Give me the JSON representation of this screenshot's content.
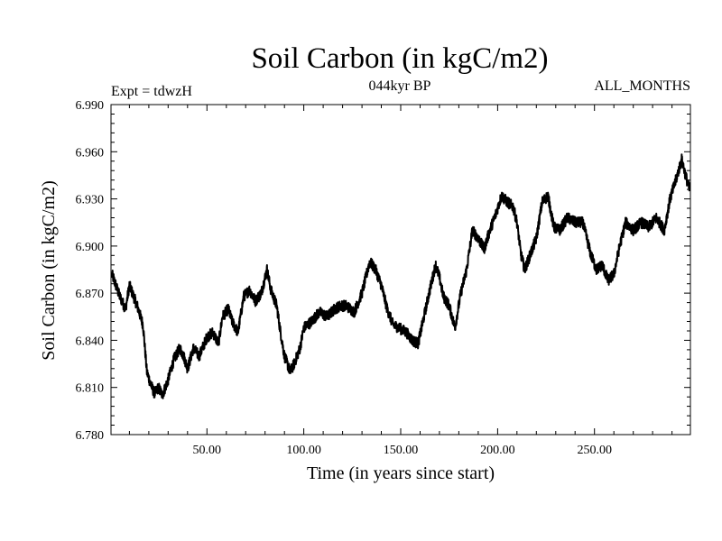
{
  "chart_data": {
    "type": "line",
    "title": "Soil Carbon (in kgC/m2)",
    "subtitle": "044kyr BP",
    "left_label": "Expt = tdwzH",
    "right_label": "ALL_MONTHS",
    "xlabel": "Time (in years since start)",
    "ylabel": "Soil Carbon (in kgC/m2)",
    "xlim": [
      0.5,
      299.5
    ],
    "ylim": [
      6.78,
      6.99
    ],
    "xticks": [
      50,
      100,
      150,
      200,
      250
    ],
    "xtick_labels": [
      "50.00",
      "100.00",
      "150.00",
      "200.00",
      "250.00"
    ],
    "yticks": [
      6.78,
      6.81,
      6.84,
      6.87,
      6.9,
      6.93,
      6.96,
      6.99
    ],
    "ytick_labels": [
      "6.780",
      "6.810",
      "6.840",
      "6.870",
      "6.900",
      "6.930",
      "6.960",
      "6.990"
    ],
    "line_color": "#000000",
    "series": [
      {
        "name": "Soil Carbon",
        "x": [
          1,
          5,
          8,
          10,
          14,
          17,
          19,
          21,
          23,
          25,
          27,
          30,
          33,
          36,
          38,
          40,
          43,
          46,
          50,
          53,
          56,
          58,
          61,
          63,
          66,
          69,
          72,
          75,
          78,
          81,
          83,
          86,
          88,
          90,
          93,
          95,
          98,
          100,
          104,
          108,
          112,
          116,
          119,
          122,
          126,
          130,
          134,
          137,
          140,
          143,
          146,
          149,
          153,
          156,
          159,
          162,
          165,
          168,
          170,
          172,
          175,
          178,
          181,
          184,
          187,
          190,
          193,
          196,
          199,
          202,
          205,
          208,
          210,
          212,
          214,
          217,
          220,
          223,
          226,
          229,
          232,
          236,
          240,
          244,
          248,
          251,
          254,
          257,
          260,
          263,
          266,
          270,
          274,
          278,
          282,
          286,
          289,
          292,
          295,
          297,
          299
        ],
        "y": [
          6.882,
          6.868,
          6.86,
          6.875,
          6.862,
          6.85,
          6.82,
          6.812,
          6.806,
          6.81,
          6.805,
          6.815,
          6.828,
          6.835,
          6.83,
          6.822,
          6.835,
          6.83,
          6.842,
          6.845,
          6.838,
          6.855,
          6.86,
          6.852,
          6.845,
          6.868,
          6.872,
          6.865,
          6.87,
          6.885,
          6.872,
          6.862,
          6.845,
          6.83,
          6.82,
          6.825,
          6.835,
          6.848,
          6.852,
          6.858,
          6.855,
          6.86,
          6.862,
          6.862,
          6.858,
          6.87,
          6.89,
          6.885,
          6.875,
          6.86,
          6.85,
          6.848,
          6.845,
          6.84,
          6.838,
          6.855,
          6.872,
          6.888,
          6.88,
          6.868,
          6.862,
          6.848,
          6.87,
          6.885,
          6.91,
          6.905,
          6.898,
          6.91,
          6.92,
          6.932,
          6.928,
          6.925,
          6.915,
          6.895,
          6.885,
          6.895,
          6.905,
          6.928,
          6.932,
          6.912,
          6.91,
          6.918,
          6.915,
          6.915,
          6.895,
          6.885,
          6.888,
          6.878,
          6.882,
          6.9,
          6.915,
          6.91,
          6.915,
          6.912,
          6.918,
          6.91,
          6.93,
          6.942,
          6.955,
          6.945,
          6.936
        ]
      }
    ]
  }
}
